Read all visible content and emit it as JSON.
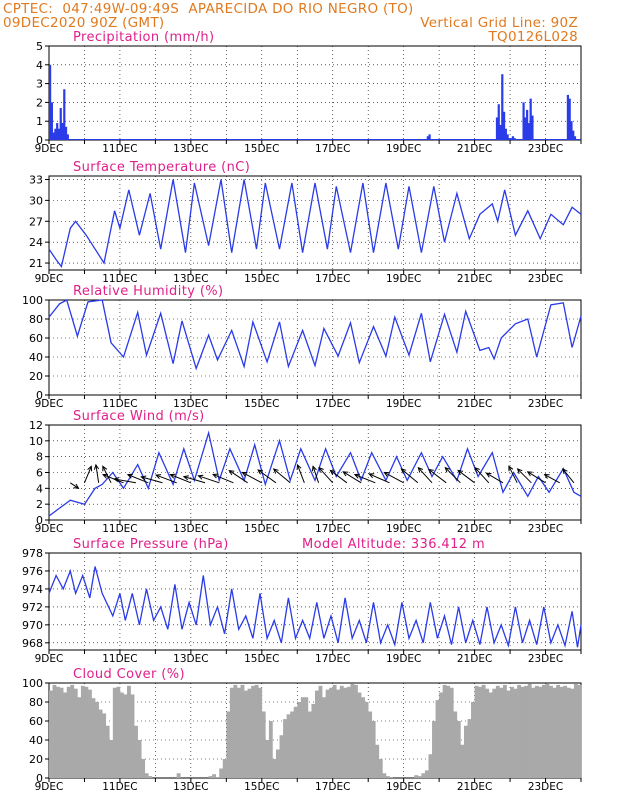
{
  "header": {
    "source": "CPTEC:",
    "coords": "047:49W-09:49S",
    "location": "APARECIDA DO RIO NEGRO (TO)",
    "datetime": "09DEC2020 90Z (GMT)",
    "grid_note": "Vertical Grid Line: 90Z",
    "code": "TQ0126L028"
  },
  "colors": {
    "line": "#2a3be8",
    "title": "#e0208a",
    "header": "#e07a20",
    "cloud": "#a9a9a9"
  },
  "chart_data": [
    {
      "type": "bar",
      "id": "precipitation",
      "title": "Precipitation (mm/h)",
      "ylim": [
        0,
        5
      ],
      "yticks": [
        0,
        1,
        2,
        3,
        4,
        5
      ],
      "xlim": [
        9,
        24
      ],
      "xticks": [
        9,
        11,
        13,
        15,
        17,
        19,
        21,
        23
      ],
      "xtick_labels": [
        "9DEC",
        "11DEC",
        "13DEC",
        "15DEC",
        "17DEC",
        "19DEC",
        "21DEC",
        "23DEC"
      ],
      "x": [
        9.0,
        9.05,
        9.1,
        9.15,
        9.2,
        9.25,
        9.3,
        9.35,
        9.4,
        9.45,
        9.5,
        19.65,
        19.7,
        21.6,
        21.65,
        21.7,
        21.75,
        21.8,
        21.85,
        21.9,
        21.95,
        22.0,
        22.05,
        22.1,
        22.35,
        22.4,
        22.45,
        22.5,
        22.55,
        22.6,
        23.6,
        23.65,
        23.7,
        23.75,
        23.8
      ],
      "values": [
        4.0,
        2.0,
        0.4,
        0.6,
        0.9,
        0.6,
        1.7,
        0.9,
        2.7,
        0.7,
        0.3,
        0.2,
        0.3,
        1.2,
        1.9,
        0.8,
        3.5,
        1.5,
        0.6,
        0.3,
        0.1,
        0.1,
        0.2,
        0.1,
        2.0,
        1.2,
        1.6,
        0.9,
        2.2,
        1.3,
        2.4,
        2.2,
        1.0,
        0.5,
        0.2
      ]
    },
    {
      "type": "line",
      "id": "temperature",
      "title": "Surface Temperature (nC)",
      "ylim": [
        20,
        33.5
      ],
      "yticks": [
        21,
        24,
        27,
        30,
        33
      ],
      "xlim": [
        9,
        24
      ],
      "xticks": [
        9,
        11,
        13,
        15,
        17,
        19,
        21,
        23
      ],
      "xtick_labels": [
        "9DEC",
        "11DEC",
        "13DEC",
        "15DEC",
        "17DEC",
        "19DEC",
        "21DEC",
        "23DEC"
      ],
      "x": [
        9.0,
        9.2,
        9.35,
        9.6,
        9.75,
        10.05,
        10.55,
        10.85,
        11.0,
        11.25,
        11.55,
        11.85,
        12.15,
        12.5,
        12.85,
        13.1,
        13.5,
        13.85,
        14.15,
        14.5,
        14.85,
        15.1,
        15.5,
        15.85,
        16.15,
        16.5,
        16.85,
        17.1,
        17.5,
        17.85,
        18.15,
        18.5,
        18.85,
        19.15,
        19.5,
        19.85,
        20.15,
        20.5,
        20.85,
        21.15,
        21.5,
        21.65,
        21.85,
        22.15,
        22.5,
        22.85,
        23.15,
        23.5,
        23.75,
        24.0
      ],
      "values": [
        23.0,
        21.5,
        20.5,
        26.0,
        27.0,
        25.0,
        21.0,
        28.5,
        26.0,
        31.5,
        25.0,
        31.0,
        23.0,
        33.0,
        22.5,
        32.5,
        23.5,
        33.0,
        22.5,
        33.0,
        23.0,
        32.5,
        23.0,
        32.5,
        22.5,
        32.5,
        23.0,
        32.0,
        22.5,
        32.5,
        22.5,
        32.5,
        23.0,
        32.0,
        22.5,
        32.0,
        24.0,
        31.0,
        24.5,
        28.0,
        29.5,
        27.0,
        31.5,
        25.0,
        28.5,
        24.5,
        28.0,
        26.5,
        29.0,
        28.0
      ]
    },
    {
      "type": "line",
      "id": "humidity",
      "title": "Relative Humidity (%)",
      "ylim": [
        0,
        100
      ],
      "yticks": [
        0,
        20,
        40,
        60,
        80,
        100
      ],
      "xlim": [
        9,
        24
      ],
      "xticks": [
        9,
        11,
        13,
        15,
        17,
        19,
        21,
        23
      ],
      "xtick_labels": [
        "9DEC",
        "11DEC",
        "13DEC",
        "15DEC",
        "17DEC",
        "19DEC",
        "21DEC",
        "23DEC"
      ],
      "x": [
        9.0,
        9.3,
        9.5,
        9.8,
        10.1,
        10.5,
        10.75,
        11.1,
        11.5,
        11.75,
        12.15,
        12.5,
        12.75,
        13.15,
        13.5,
        13.75,
        14.15,
        14.5,
        14.75,
        15.15,
        15.5,
        15.75,
        16.15,
        16.5,
        16.75,
        17.15,
        17.5,
        17.75,
        18.15,
        18.5,
        18.75,
        19.15,
        19.5,
        19.75,
        20.15,
        20.5,
        20.75,
        21.15,
        21.4,
        21.55,
        21.75,
        22.15,
        22.5,
        22.75,
        23.15,
        23.5,
        23.75,
        24.0
      ],
      "values": [
        82,
        96,
        100,
        62,
        98,
        100,
        55,
        40,
        87,
        42,
        86,
        33,
        78,
        28,
        63,
        37,
        68,
        30,
        77,
        35,
        77,
        30,
        68,
        31,
        70,
        41,
        76,
        34,
        72,
        41,
        82,
        42,
        86,
        35,
        85,
        45,
        88,
        47,
        50,
        38,
        60,
        75,
        80,
        40,
        95,
        97,
        50,
        83
      ]
    },
    {
      "type": "line",
      "id": "wind",
      "title": "Surface Wind (m/s)",
      "ylim": [
        0,
        12
      ],
      "yticks": [
        0,
        2,
        4,
        6,
        8,
        10,
        12
      ],
      "xlim": [
        9,
        24
      ],
      "xticks": [
        9,
        11,
        13,
        15,
        17,
        19,
        21,
        23
      ],
      "xtick_labels": [
        "9DEC",
        "11DEC",
        "13DEC",
        "15DEC",
        "17DEC",
        "19DEC",
        "21DEC",
        "23DEC"
      ],
      "x": [
        9.0,
        9.3,
        9.6,
        10.0,
        10.3,
        10.5,
        10.8,
        11.1,
        11.5,
        11.8,
        12.1,
        12.5,
        12.8,
        13.1,
        13.5,
        13.8,
        14.1,
        14.5,
        14.8,
        15.1,
        15.5,
        15.8,
        16.1,
        16.5,
        16.8,
        17.1,
        17.5,
        17.8,
        18.1,
        18.5,
        18.8,
        19.1,
        19.5,
        19.8,
        20.1,
        20.5,
        20.8,
        21.1,
        21.5,
        21.8,
        22.1,
        22.5,
        22.8,
        23.1,
        23.5,
        23.8,
        24.0
      ],
      "values": [
        0.5,
        1.5,
        2.5,
        2.0,
        4.0,
        4.5,
        6.0,
        4.0,
        7.0,
        4.0,
        8.5,
        4.5,
        9.0,
        5.0,
        11.0,
        5.0,
        9.0,
        5.0,
        9.5,
        4.5,
        10.0,
        5.0,
        9.0,
        5.0,
        9.0,
        5.5,
        8.5,
        5.0,
        8.5,
        5.0,
        8.0,
        5.0,
        8.5,
        5.5,
        8.0,
        5.0,
        9.0,
        5.5,
        8.5,
        3.5,
        6.0,
        3.0,
        5.5,
        3.5,
        6.5,
        3.5,
        3.0
      ],
      "arrows": [
        {
          "x": 9.6,
          "u": -0.6,
          "v": 0.4
        },
        {
          "x": 10.0,
          "u": -0.5,
          "v": -1.2
        },
        {
          "x": 10.4,
          "u": 0.2,
          "v": -1.3
        },
        {
          "x": 10.75,
          "u": 0.6,
          "v": -1.2
        },
        {
          "x": 11.1,
          "u": 1.5,
          "v": -0.6
        },
        {
          "x": 11.45,
          "u": 1.7,
          "v": -0.3
        },
        {
          "x": 11.8,
          "u": 1.5,
          "v": -0.6
        },
        {
          "x": 12.2,
          "u": 1.8,
          "v": -0.5
        },
        {
          "x": 12.6,
          "u": 1.6,
          "v": -0.6
        },
        {
          "x": 13.0,
          "u": 1.5,
          "v": -0.6
        },
        {
          "x": 13.4,
          "u": 1.7,
          "v": -0.5
        },
        {
          "x": 13.8,
          "u": 1.8,
          "v": -0.6
        },
        {
          "x": 14.2,
          "u": 1.7,
          "v": -0.7
        },
        {
          "x": 14.6,
          "u": 1.5,
          "v": -1.0
        },
        {
          "x": 15.0,
          "u": 1.5,
          "v": -0.8
        },
        {
          "x": 15.4,
          "u": 1.4,
          "v": -1.0
        },
        {
          "x": 15.8,
          "u": 1.2,
          "v": -1.0
        },
        {
          "x": 16.2,
          "u": 0.5,
          "v": -1.3
        },
        {
          "x": 16.6,
          "u": 0.4,
          "v": -1.2
        },
        {
          "x": 17.0,
          "u": 1.0,
          "v": -1.1
        },
        {
          "x": 17.4,
          "u": 1.2,
          "v": -0.9
        },
        {
          "x": 17.8,
          "u": 1.3,
          "v": -0.8
        },
        {
          "x": 18.2,
          "u": 1.5,
          "v": -0.6
        },
        {
          "x": 18.6,
          "u": 1.6,
          "v": -0.7
        },
        {
          "x": 19.0,
          "u": 1.5,
          "v": -0.8
        },
        {
          "x": 19.4,
          "u": 1.2,
          "v": -1.0
        },
        {
          "x": 19.8,
          "u": 1.0,
          "v": -1.1
        },
        {
          "x": 20.2,
          "u": 1.3,
          "v": -1.0
        },
        {
          "x": 20.6,
          "u": 1.1,
          "v": -1.1
        },
        {
          "x": 21.0,
          "u": 1.2,
          "v": -0.9
        },
        {
          "x": 21.4,
          "u": 1.0,
          "v": -1.1
        },
        {
          "x": 21.8,
          "u": 1.2,
          "v": -0.7
        },
        {
          "x": 22.2,
          "u": 0.6,
          "v": -1.2
        },
        {
          "x": 22.6,
          "u": 1.0,
          "v": -1.0
        },
        {
          "x": 23.0,
          "u": 1.3,
          "v": -0.8
        },
        {
          "x": 23.4,
          "u": 1.1,
          "v": -0.6
        },
        {
          "x": 23.8,
          "u": 0.8,
          "v": -1.0
        }
      ]
    },
    {
      "type": "line",
      "id": "pressure",
      "title": "Surface Pressure (hPa)",
      "annotation": "Model Altitude: 336.412 m",
      "ylim": [
        967.2,
        978
      ],
      "yticks": [
        968,
        970,
        972,
        974,
        976,
        978
      ],
      "xlim": [
        9,
        24
      ],
      "xticks": [
        9,
        11,
        13,
        15,
        17,
        19,
        21,
        23
      ],
      "xtick_labels": [
        "9DEC",
        "11DEC",
        "13DEC",
        "15DEC",
        "17DEC",
        "19DEC",
        "21DEC",
        "23DEC"
      ],
      "x": [
        9.0,
        9.2,
        9.4,
        9.6,
        9.75,
        9.95,
        10.15,
        10.3,
        10.5,
        10.8,
        11.0,
        11.15,
        11.35,
        11.55,
        11.75,
        11.95,
        12.15,
        12.35,
        12.55,
        12.75,
        12.95,
        13.15,
        13.35,
        13.55,
        13.75,
        13.95,
        14.15,
        14.35,
        14.55,
        14.75,
        14.95,
        15.15,
        15.35,
        15.55,
        15.75,
        15.95,
        16.15,
        16.35,
        16.55,
        16.75,
        16.95,
        17.15,
        17.35,
        17.55,
        17.75,
        17.95,
        18.15,
        18.35,
        18.55,
        18.75,
        18.95,
        19.15,
        19.35,
        19.55,
        19.75,
        19.95,
        20.15,
        20.35,
        20.55,
        20.75,
        20.95,
        21.15,
        21.35,
        21.55,
        21.75,
        21.95,
        22.15,
        22.35,
        22.55,
        22.75,
        22.95,
        23.15,
        23.35,
        23.55,
        23.75,
        23.9,
        24.0
      ],
      "values": [
        973.5,
        975.5,
        974.0,
        976.0,
        973.5,
        975.5,
        973.0,
        976.5,
        973.5,
        971.0,
        973.5,
        970.5,
        973.5,
        970.0,
        974.0,
        970.5,
        972.0,
        969.5,
        974.5,
        969.5,
        972.5,
        970.0,
        975.5,
        970.0,
        972.0,
        969.0,
        974.0,
        969.5,
        971.0,
        968.5,
        973.5,
        968.5,
        970.5,
        968.0,
        973.0,
        968.5,
        970.5,
        968.5,
        972.5,
        968.5,
        971.0,
        968.0,
        973.0,
        968.5,
        970.5,
        968.0,
        972.5,
        968.0,
        970.0,
        967.8,
        972.5,
        968.5,
        970.5,
        968.0,
        972.5,
        968.5,
        971.0,
        967.8,
        972.0,
        968.0,
        970.5,
        967.8,
        972.0,
        968.0,
        970.0,
        967.7,
        972.0,
        968.0,
        970.5,
        967.8,
        972.0,
        968.0,
        970.0,
        967.7,
        971.5,
        967.5,
        970.0
      ]
    },
    {
      "type": "bar",
      "id": "cloud",
      "title": "Cloud Cover (%)",
      "ylim": [
        0,
        100
      ],
      "yticks": [
        0,
        20,
        40,
        60,
        80,
        100
      ],
      "xlim": [
        9,
        24
      ],
      "xticks": [
        9,
        11,
        13,
        15,
        17,
        19,
        21,
        23
      ],
      "xtick_labels": [
        "9DEC",
        "11DEC",
        "13DEC",
        "15DEC",
        "17DEC",
        "19DEC",
        "21DEC",
        "23DEC"
      ],
      "x_start": 9.05,
      "x_step": 0.1,
      "values": [
        92,
        98,
        96,
        95,
        90,
        96,
        98,
        94,
        85,
        97,
        96,
        93,
        84,
        80,
        72,
        68,
        55,
        40,
        95,
        96,
        90,
        88,
        97,
        88,
        55,
        40,
        20,
        5,
        2,
        0,
        0,
        0,
        0,
        0,
        0,
        0,
        5,
        0,
        0,
        0,
        0,
        0,
        0,
        0,
        0,
        2,
        4,
        1,
        10,
        20,
        70,
        95,
        98,
        95,
        98,
        92,
        94,
        97,
        98,
        95,
        70,
        40,
        60,
        20,
        30,
        45,
        62,
        67,
        70,
        75,
        80,
        85,
        85,
        70,
        78,
        92,
        97,
        85,
        93,
        95,
        98,
        93,
        97,
        95,
        96,
        99,
        98,
        90,
        85,
        80,
        70,
        60,
        35,
        20,
        5,
        2,
        1,
        0,
        0,
        0,
        0,
        0,
        0,
        3,
        2,
        5,
        8,
        25,
        60,
        82,
        90,
        98,
        97,
        95,
        70,
        60,
        35,
        55,
        62,
        80,
        97,
        96,
        98,
        94,
        90,
        94,
        97,
        95,
        98,
        92,
        96,
        94,
        98,
        96,
        97,
        99,
        95,
        97,
        96,
        98,
        99,
        97,
        95,
        98,
        96,
        97,
        95,
        94,
        99,
        98
      ]
    }
  ]
}
